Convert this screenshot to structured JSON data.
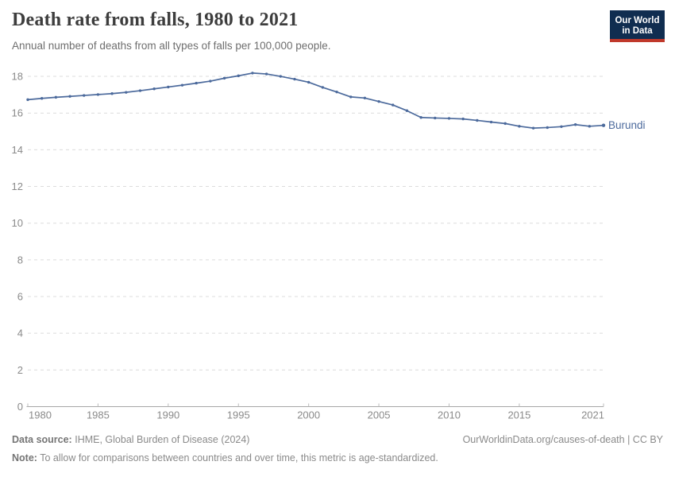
{
  "header": {
    "title": "Death rate from falls, 1980 to 2021",
    "subtitle": "Annual number of deaths from all types of falls per 100,000 people.",
    "logo": {
      "line1": "Our World",
      "line2": "in Data",
      "bg_color": "#102d50",
      "accent_color": "#c0392b"
    }
  },
  "chart_data": {
    "type": "line",
    "title": "Death rate from falls, 1980 to 2021",
    "subtitle": "Annual number of deaths from all types of falls per 100,000 people.",
    "xlabel": "",
    "ylabel": "",
    "xlim": [
      1980,
      2021
    ],
    "ylim": [
      0,
      18.6
    ],
    "grid": "horizontal-dashed",
    "x": [
      1980,
      1981,
      1982,
      1983,
      1984,
      1985,
      1986,
      1987,
      1988,
      1989,
      1990,
      1991,
      1992,
      1993,
      1994,
      1995,
      1996,
      1997,
      1998,
      1999,
      2000,
      2001,
      2002,
      2003,
      2004,
      2005,
      2006,
      2007,
      2008,
      2009,
      2010,
      2011,
      2012,
      2013,
      2014,
      2015,
      2016,
      2017,
      2018,
      2019,
      2020,
      2021
    ],
    "series": [
      {
        "name": "Burundi",
        "color": "#4C6A9C",
        "values": [
          16.73,
          16.8,
          16.86,
          16.91,
          16.96,
          17.01,
          17.06,
          17.13,
          17.22,
          17.32,
          17.42,
          17.52,
          17.63,
          17.74,
          17.9,
          18.03,
          18.18,
          18.13,
          18.0,
          17.85,
          17.68,
          17.4,
          17.15,
          16.88,
          16.82,
          16.63,
          16.44,
          16.13,
          15.76,
          15.73,
          15.71,
          15.68,
          15.6,
          15.51,
          15.43,
          15.28,
          15.18,
          15.21,
          15.26,
          15.37,
          15.28,
          15.33
        ]
      }
    ],
    "x_ticks": [
      1980,
      1985,
      1990,
      1995,
      2000,
      2005,
      2010,
      2015,
      2021
    ],
    "x_tick_labels": [
      "1980",
      "1985",
      "1990",
      "1995",
      "2000",
      "2005",
      "2010",
      "2015",
      "2021"
    ],
    "y_ticks": [
      0,
      2,
      4,
      6,
      8,
      10,
      12,
      14,
      16,
      18
    ],
    "legend_position": "end-of-line-label"
  },
  "footer": {
    "source_label": "Data source:",
    "source_text": "IHME, Global Burden of Disease (2024)",
    "credit": "OurWorldinData.org/causes-of-death | CC BY",
    "note_label": "Note:",
    "note_text": "To allow for comparisons between countries and over time, this metric is age-standardized."
  }
}
